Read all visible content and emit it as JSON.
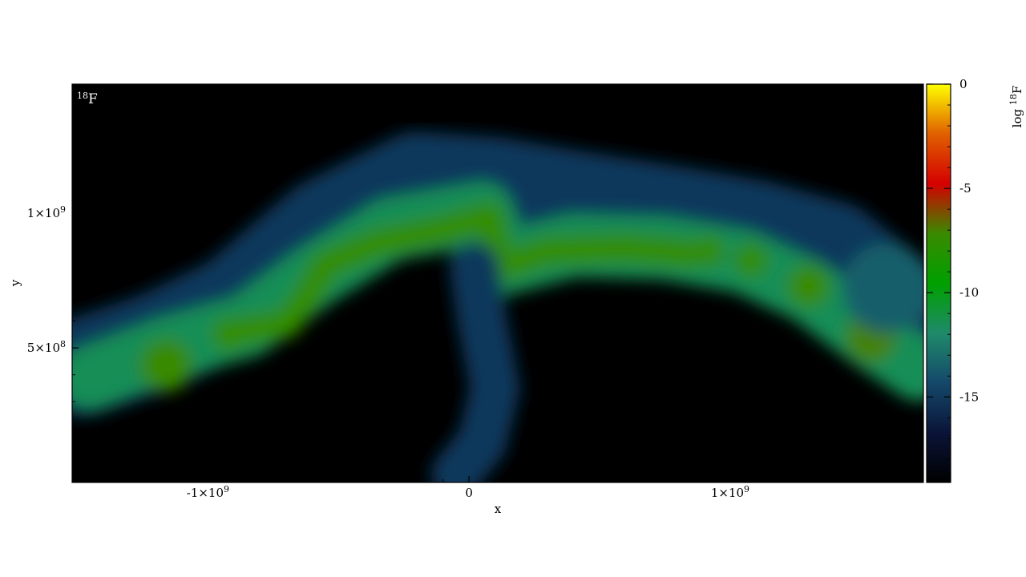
{
  "chart_data": {
    "type": "heatmap",
    "panel_label": "18F",
    "panel_label_super": "18",
    "panel_label_main": "F",
    "xlabel": "x",
    "ylabel": "y",
    "xlim": [
      -1520000000.0,
      1740000000.0
    ],
    "ylim": [
      0.0,
      1480000000.0
    ],
    "x_ticks": [
      {
        "value": -1000000000.0,
        "label": "-1×10",
        "exp": "9"
      },
      {
        "value": 0.0,
        "label": "0",
        "exp": ""
      },
      {
        "value": 1000000000.0,
        "label": "1×10",
        "exp": "9"
      }
    ],
    "y_ticks": [
      {
        "value": 500000000.0,
        "label": "5×10",
        "exp": "8"
      },
      {
        "value": 1000000000.0,
        "label": "1×10",
        "exp": "9"
      }
    ],
    "colorbar": {
      "label_prefix": "log ",
      "label_super": "18",
      "label_main": "F",
      "range": [
        -19.1,
        0
      ],
      "ticks": [
        {
          "value": 0,
          "label": "0"
        },
        {
          "value": -5,
          "label": "-5"
        },
        {
          "value": -10,
          "label": "-10"
        },
        {
          "value": -15,
          "label": "-15"
        }
      ],
      "colormap": [
        "#000000",
        "#0a1438",
        "#14486a",
        "#1f8a6a",
        "#00a000",
        "#3a8a00",
        "#d40000",
        "#e06000",
        "#ffff00"
      ]
    },
    "background_value": -19,
    "features": [
      {
        "name": "arc-outer-halo",
        "level": -15,
        "points": [
          [
            -1480000000.0,
            430000000.0
          ],
          [
            -1200000000.0,
            520000000.0
          ],
          [
            -900000000.0,
            660000000.0
          ],
          [
            -550000000.0,
            950000000.0
          ],
          [
            -200000000.0,
            1120000000.0
          ],
          [
            100000000.0,
            1100000000.0
          ],
          [
            400000000.0,
            1050000000.0
          ],
          [
            800000000.0,
            990000000.0
          ],
          [
            1100000000.0,
            940000000.0
          ],
          [
            1400000000.0,
            860000000.0
          ],
          [
            1700000000.0,
            620000000.0
          ]
        ],
        "width": 380000000.0
      },
      {
        "name": "arc-green",
        "level": -11.5,
        "points": [
          [
            -1450000000.0,
            390000000.0
          ],
          [
            -1150000000.0,
            500000000.0
          ],
          [
            -850000000.0,
            580000000.0
          ],
          [
            -600000000.0,
            760000000.0
          ],
          [
            -300000000.0,
            940000000.0
          ],
          [
            50000000.0,
            1000000000.0
          ],
          [
            120000000.0,
            810000000.0
          ],
          [
            400000000.0,
            880000000.0
          ],
          [
            750000000.0,
            870000000.0
          ],
          [
            1050000000.0,
            820000000.0
          ],
          [
            1300000000.0,
            710000000.0
          ],
          [
            1550000000.0,
            530000000.0
          ],
          [
            1720000000.0,
            420000000.0
          ]
        ],
        "width": 240000000.0
      },
      {
        "name": "arc-core",
        "level": -7.5,
        "points": [
          [
            -880000000.0,
            560000000.0
          ],
          [
            -700000000.0,
            590000000.0
          ],
          [
            -620000000.0,
            690000000.0
          ],
          [
            -550000000.0,
            810000000.0
          ],
          [
            -350000000.0,
            890000000.0
          ],
          [
            -100000000.0,
            940000000.0
          ],
          [
            80000000.0,
            990000000.0
          ],
          [
            120000000.0,
            800000000.0
          ],
          [
            300000000.0,
            860000000.0
          ],
          [
            600000000.0,
            870000000.0
          ],
          [
            850000000.0,
            850000000.0
          ]
        ],
        "width": 110000000.0
      },
      {
        "name": "blob-1",
        "level": -7.2,
        "center": [
          -1160000000.0,
          435000000.0
        ],
        "radius": 100000000.0
      },
      {
        "name": "blob-2",
        "level": -7.5,
        "center": [
          -920000000.0,
          550000000.0
        ],
        "radius": 65000000.0
      },
      {
        "name": "blob-3",
        "level": -7.5,
        "center": [
          920000000.0,
          860000000.0
        ],
        "radius": 60000000.0
      },
      {
        "name": "blob-4",
        "level": -7.5,
        "center": [
          1080000000.0,
          825000000.0
        ],
        "radius": 65000000.0
      },
      {
        "name": "blob-5",
        "level": -7.3,
        "center": [
          1300000000.0,
          730000000.0
        ],
        "radius": 80000000.0
      },
      {
        "name": "blob-6",
        "level": -7.0,
        "center": [
          1540000000.0,
          540000000.0
        ],
        "radius": 95000000.0
      },
      {
        "name": "stem-plume",
        "level": -15,
        "points": [
          [
            20000000.0,
            800000000.0
          ],
          [
            50000000.0,
            600000000.0
          ],
          [
            100000000.0,
            350000000.0
          ],
          [
            50000000.0,
            150000000.0
          ],
          [
            -50000000.0,
            30000000.0
          ]
        ],
        "width": 190000000.0
      },
      {
        "name": "right-cap-halo",
        "level": -13.5,
        "center": [
          1600000000.0,
          720000000.0
        ],
        "radius": 170000000.0
      }
    ]
  }
}
